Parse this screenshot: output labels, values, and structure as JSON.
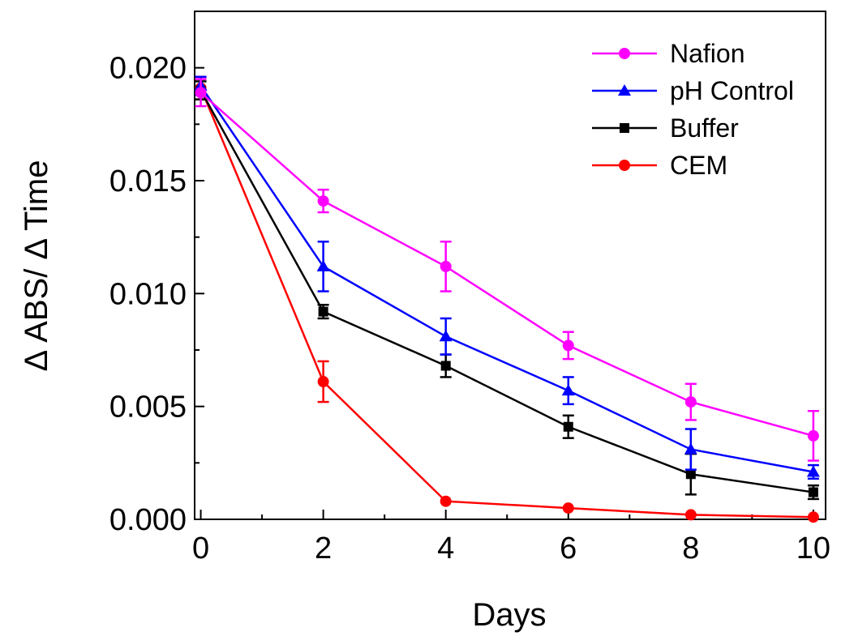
{
  "chart_data": {
    "type": "line",
    "title": "",
    "xlabel": "Days",
    "ylabel": "Δ ABS/ Δ Time",
    "xlim": [
      -0.1,
      10.2
    ],
    "ylim": [
      0,
      0.0225
    ],
    "xticks": [
      0,
      2,
      4,
      6,
      8,
      10
    ],
    "xtick_labels": [
      "0",
      "2",
      "4",
      "6",
      "8",
      "10"
    ],
    "yticks": [
      0,
      0.005,
      0.01,
      0.015,
      0.02
    ],
    "ytick_labels": [
      "0.000",
      "0.005",
      "0.010",
      "0.015",
      "0.020"
    ],
    "grid": false,
    "legend_position": "top-right",
    "x": [
      0,
      2,
      4,
      6,
      8,
      10
    ],
    "series": [
      {
        "name": "Nafion",
        "color": "#ff00ff",
        "marker": "circle",
        "values": [
          0.0189,
          0.0141,
          0.0112,
          0.0077,
          0.0052,
          0.0037
        ],
        "errors": [
          0.0006,
          0.0005,
          0.0011,
          0.0006,
          0.0008,
          0.0011
        ]
      },
      {
        "name": "pH Control",
        "color": "#0000ff",
        "marker": "triangle",
        "values": [
          0.0192,
          0.0112,
          0.0081,
          0.0057,
          0.0031,
          0.0021
        ],
        "errors": [
          0.0004,
          0.0011,
          0.0008,
          0.0006,
          0.0009,
          0.0003
        ]
      },
      {
        "name": "Buffer",
        "color": "#000000",
        "marker": "square",
        "values": [
          0.019,
          0.0092,
          0.0068,
          0.0041,
          0.002,
          0.0012
        ],
        "errors": [
          0.0004,
          0.0003,
          0.0005,
          0.0005,
          0.0009,
          0.0003
        ]
      },
      {
        "name": "CEM",
        "color": "#ff0000",
        "marker": "circle",
        "values": [
          0.0191,
          0.0061,
          0.0008,
          0.0005,
          0.0002,
          0.0001
        ],
        "errors": [
          0.0005,
          0.0009,
          0.0,
          0.0,
          0.0,
          0.0
        ]
      }
    ]
  }
}
